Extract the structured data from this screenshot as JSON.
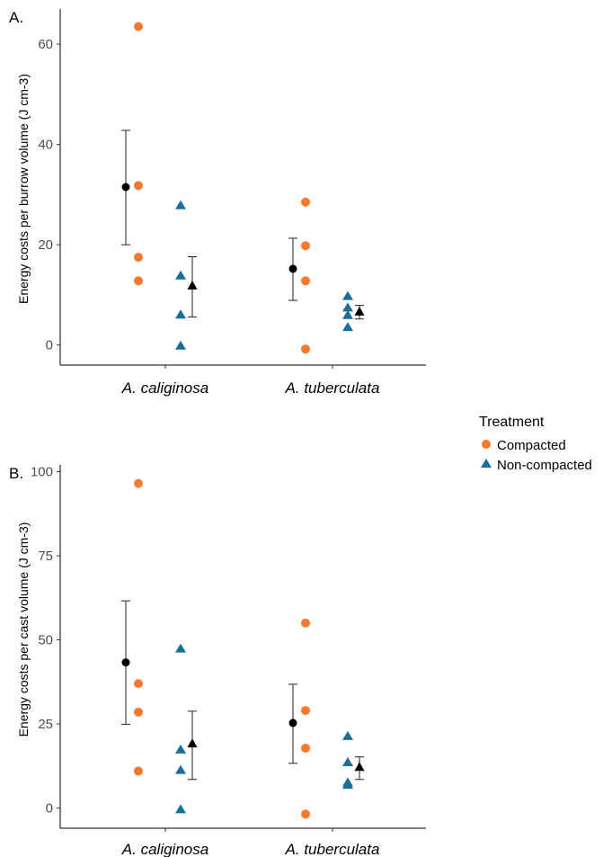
{
  "legend": {
    "title": "Treatment",
    "entries": [
      {
        "label": "Compacted",
        "shape": "circle",
        "color": "#f47a2f"
      },
      {
        "label": "Non-compacted",
        "shape": "triangle",
        "color": "#1a6e9a"
      }
    ]
  },
  "chart_data": [
    {
      "type": "scatter",
      "panel_label": "A.",
      "ylabel": "Energy costs per burrow volume (J cm-3)",
      "ylim": [
        -4,
        67
      ],
      "yticks": [
        0,
        20,
        40,
        60
      ],
      "categories": [
        "A. caliginosa",
        "A. tuberculata"
      ],
      "grid": false,
      "series": [
        {
          "name": "Compacted",
          "shape": "circle",
          "color": "#f47a2f",
          "values": [
            [
              63.5,
              31.8,
              17.5,
              12.8
            ],
            [
              28.5,
              19.8,
              12.8,
              -0.8
            ]
          ]
        },
        {
          "name": "Non-compacted",
          "shape": "triangle",
          "color": "#1a6e9a",
          "values": [
            [
              27.8,
              13.8,
              6.0,
              -0.2
            ],
            [
              9.7,
              7.4,
              5.9,
              3.5
            ]
          ]
        }
      ],
      "summary": [
        {
          "series": "Compacted",
          "category": "A. caliginosa",
          "mean": 31.5,
          "low": 20.0,
          "high": 42.8
        },
        {
          "series": "Non-compacted",
          "category": "A. caliginosa",
          "mean": 11.8,
          "low": 5.6,
          "high": 17.6
        },
        {
          "series": "Compacted",
          "category": "A. tuberculata",
          "mean": 15.2,
          "low": 8.9,
          "high": 21.3
        },
        {
          "series": "Non-compacted",
          "category": "A. tuberculata",
          "mean": 6.6,
          "low": 5.2,
          "high": 7.9
        }
      ]
    },
    {
      "type": "scatter",
      "panel_label": "B.",
      "ylabel": "Energy costs per cast volume (J cm-3)",
      "ylim": [
        -6,
        102
      ],
      "yticks": [
        0,
        25,
        50,
        75,
        100
      ],
      "categories": [
        "A. caliginosa",
        "A. tuberculata"
      ],
      "grid": false,
      "series": [
        {
          "name": "Compacted",
          "shape": "circle",
          "color": "#f47a2f",
          "values": [
            [
              96.5,
              37.0,
              28.5,
              11.0
            ],
            [
              55.0,
              29.0,
              17.8,
              -1.8
            ]
          ]
        },
        {
          "name": "Non-compacted",
          "shape": "triangle",
          "color": "#1a6e9a",
          "values": [
            [
              47.3,
              17.3,
              11.2,
              -0.5
            ],
            [
              21.3,
              13.5,
              7.5,
              6.8
            ]
          ]
        }
      ],
      "summary": [
        {
          "series": "Compacted",
          "category": "A. caliginosa",
          "mean": 43.3,
          "low": 24.9,
          "high": 61.6
        },
        {
          "series": "Non-compacted",
          "category": "A. caliginosa",
          "mean": 19.1,
          "low": 8.5,
          "high": 28.8
        },
        {
          "series": "Compacted",
          "category": "A. tuberculata",
          "mean": 25.3,
          "low": 13.3,
          "high": 36.8
        },
        {
          "series": "Non-compacted",
          "category": "A. tuberculata",
          "mean": 12.1,
          "low": 8.5,
          "high": 15.2
        }
      ]
    }
  ]
}
